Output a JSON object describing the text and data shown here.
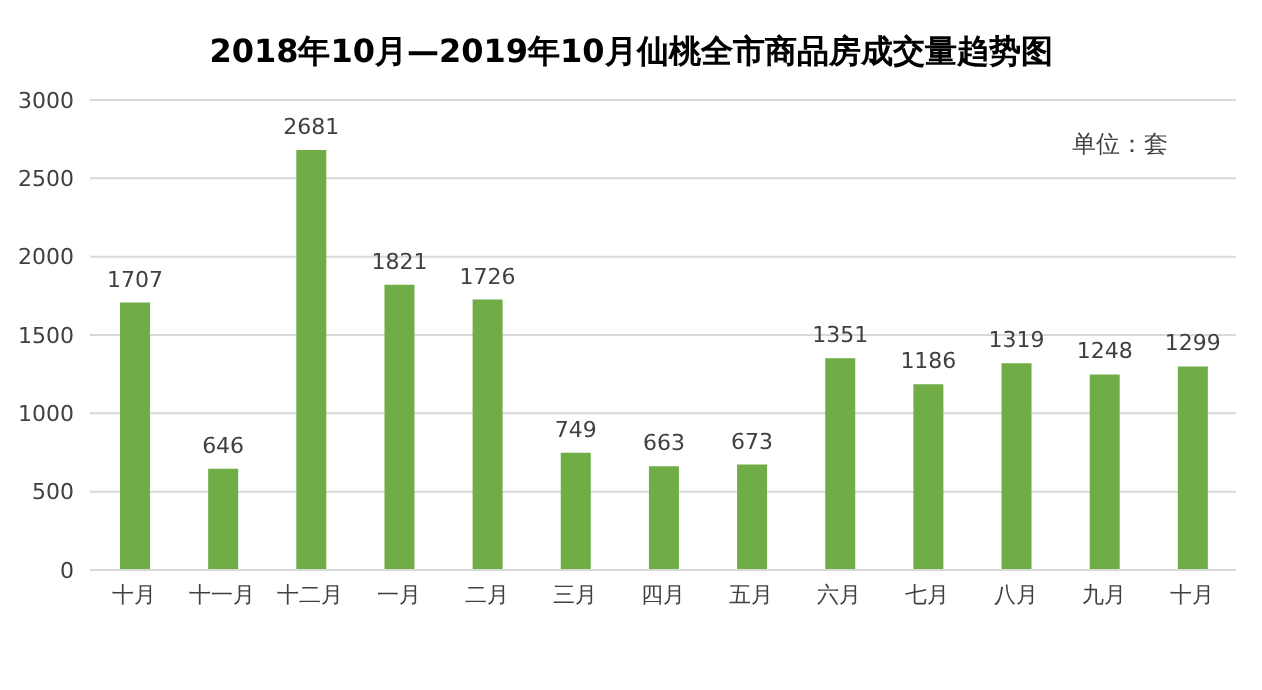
{
  "chart_data": {
    "type": "bar",
    "title": "2018年10月—2019年10月仙桃全市商品房成交量趋势图",
    "categories": [
      "十月",
      "十一月",
      "十二月",
      "一月",
      "二月",
      "三月",
      "四月",
      "五月",
      "六月",
      "七月",
      "八月",
      "九月",
      "十月"
    ],
    "values": [
      1707,
      646,
      2681,
      1821,
      1726,
      749,
      663,
      673,
      1351,
      1186,
      1319,
      1248,
      1299
    ],
    "color": "#70ad47",
    "ylim": [
      0,
      3000
    ],
    "yticks": [
      0,
      500,
      1000,
      1500,
      2000,
      2500,
      3000
    ],
    "grid": "y",
    "data_labels": true,
    "legend": false,
    "annotations": [
      "单位：套"
    ]
  }
}
